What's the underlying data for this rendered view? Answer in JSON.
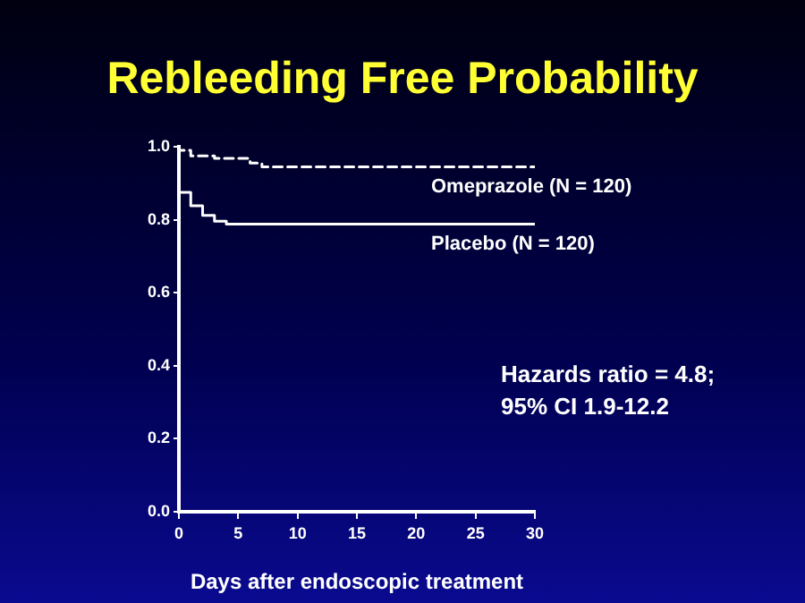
{
  "chart_data": {
    "type": "step",
    "title": "Rebleeding Free Probability",
    "xlabel": "Days after endoscopic treatment",
    "series": [
      {
        "name": "Omeprazole (N = 120)",
        "color": "#ffffff",
        "line_style": "dashed",
        "x": [
          0,
          1,
          3,
          6,
          7,
          26,
          30
        ],
        "values": [
          1.0,
          0.99,
          0.975,
          0.968,
          0.955,
          0.945,
          0.945
        ]
      },
      {
        "name": "Placebo (N = 120)",
        "color": "#ffffff",
        "line_style": "solid",
        "x": [
          0,
          1,
          2,
          3,
          4,
          18,
          30
        ],
        "values": [
          1.0,
          0.875,
          0.838,
          0.812,
          0.796,
          0.788,
          0.788
        ]
      }
    ],
    "xlim": [
      0,
      30
    ],
    "xticks": [
      0,
      5,
      10,
      15,
      20,
      25,
      30
    ],
    "ylim": [
      0,
      1
    ],
    "yticks": [
      {
        "value": 0,
        "label": "0.0"
      },
      {
        "value": 0.2,
        "label": "0.2"
      },
      {
        "value": 0.4,
        "label": "0.4"
      },
      {
        "value": 0.6,
        "label": "0.6"
      },
      {
        "value": 0.8,
        "label": "0.8"
      },
      {
        "value": 1,
        "label": "1.0"
      }
    ],
    "annotations": [
      "Hazards ratio = 4.8;",
      "95% CI 1.9-12.2"
    ],
    "grid": false,
    "legend": false,
    "marker": "none"
  }
}
